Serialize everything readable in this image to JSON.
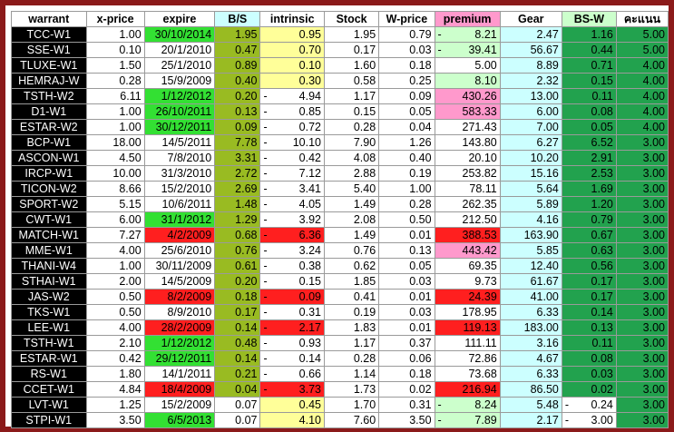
{
  "headers": [
    "warrant",
    "x-price",
    "expire",
    "B/S",
    "intrinsic",
    "Stock",
    "W-price",
    "premium",
    "Gear",
    "BS-W",
    "คะแนน"
  ],
  "colors": {
    "green": "#33e033",
    "olive": "#99bb22",
    "yellow": "#ffff99",
    "red": "#ff1f1f",
    "pink": "#ff99cc",
    "light_green": "#ccffcc",
    "cyan": "#ccffff",
    "teal": "#22a24e",
    "frame": "#8b1a1a"
  },
  "rows": [
    {
      "warrant": "TCC-W1",
      "xprice": "1.00",
      "expire": "30/10/2014",
      "bs": "1.95",
      "intrinsic": "0.95",
      "stock": "1.95",
      "wprice": "0.79",
      "premium": "8.21",
      "gear": "2.47",
      "bsw": "1.16",
      "score": "5.00"
    },
    {
      "warrant": "SSE-W1",
      "xprice": "0.10",
      "expire": "20/1/2010",
      "bs": "0.47",
      "intrinsic": "0.70",
      "stock": "0.17",
      "wprice": "0.03",
      "premium": "39.41",
      "gear": "56.67",
      "bsw": "0.44",
      "score": "5.00"
    },
    {
      "warrant": "TLUXE-W1",
      "xprice": "1.50",
      "expire": "25/1/2010",
      "bs": "0.89",
      "intrinsic": "0.10",
      "stock": "1.60",
      "wprice": "0.18",
      "premium": "5.00",
      "gear": "8.89",
      "bsw": "0.71",
      "score": "4.00"
    },
    {
      "warrant": "HEMRAJ-W",
      "xprice": "0.28",
      "expire": "15/9/2009",
      "bs": "0.40",
      "intrinsic": "0.30",
      "stock": "0.58",
      "wprice": "0.25",
      "premium": "8.10",
      "gear": "2.32",
      "bsw": "0.15",
      "score": "4.00"
    },
    {
      "warrant": "TSTH-W2",
      "xprice": "6.11",
      "expire": "1/12/2012",
      "bs": "0.20",
      "intrinsic": "4.94",
      "stock": "1.17",
      "wprice": "0.09",
      "premium": "430.26",
      "gear": "13.00",
      "bsw": "0.11",
      "score": "4.00"
    },
    {
      "warrant": "D1-W1",
      "xprice": "1.00",
      "expire": "26/10/2011",
      "bs": "0.13",
      "intrinsic": "0.85",
      "stock": "0.15",
      "wprice": "0.05",
      "premium": "583.33",
      "gear": "6.00",
      "bsw": "0.08",
      "score": "4.00"
    },
    {
      "warrant": "ESTAR-W2",
      "xprice": "1.00",
      "expire": "30/12/2011",
      "bs": "0.09",
      "intrinsic": "0.72",
      "stock": "0.28",
      "wprice": "0.04",
      "premium": "271.43",
      "gear": "7.00",
      "bsw": "0.05",
      "score": "4.00"
    },
    {
      "warrant": "BCP-W1",
      "xprice": "18.00",
      "expire": "14/5/2011",
      "bs": "7.78",
      "intrinsic": "10.10",
      "stock": "7.90",
      "wprice": "1.26",
      "premium": "143.80",
      "gear": "6.27",
      "bsw": "6.52",
      "score": "3.00"
    },
    {
      "warrant": "ASCON-W1",
      "xprice": "4.50",
      "expire": "7/8/2010",
      "bs": "3.31",
      "intrinsic": "0.42",
      "stock": "4.08",
      "wprice": "0.40",
      "premium": "20.10",
      "gear": "10.20",
      "bsw": "2.91",
      "score": "3.00"
    },
    {
      "warrant": "IRCP-W1",
      "xprice": "10.00",
      "expire": "31/3/2010",
      "bs": "2.72",
      "intrinsic": "7.12",
      "stock": "2.88",
      "wprice": "0.19",
      "premium": "253.82",
      "gear": "15.16",
      "bsw": "2.53",
      "score": "3.00"
    },
    {
      "warrant": "TICON-W2",
      "xprice": "8.66",
      "expire": "15/2/2010",
      "bs": "2.69",
      "intrinsic": "3.41",
      "stock": "5.40",
      "wprice": "1.00",
      "premium": "78.11",
      "gear": "5.64",
      "bsw": "1.69",
      "score": "3.00"
    },
    {
      "warrant": "SPORT-W2",
      "xprice": "5.15",
      "expire": "10/6/2011",
      "bs": "1.48",
      "intrinsic": "4.05",
      "stock": "1.49",
      "wprice": "0.28",
      "premium": "262.35",
      "gear": "5.89",
      "bsw": "1.20",
      "score": "3.00"
    },
    {
      "warrant": "CWT-W1",
      "xprice": "6.00",
      "expire": "31/1/2012",
      "bs": "1.29",
      "intrinsic": "3.92",
      "stock": "2.08",
      "wprice": "0.50",
      "premium": "212.50",
      "gear": "4.16",
      "bsw": "0.79",
      "score": "3.00"
    },
    {
      "warrant": "MATCH-W1",
      "xprice": "7.27",
      "expire": "4/2/2009",
      "bs": "0.68",
      "intrinsic": "6.36",
      "stock": "1.49",
      "wprice": "0.01",
      "premium": "388.53",
      "gear": "163.90",
      "bsw": "0.67",
      "score": "3.00"
    },
    {
      "warrant": "MME-W1",
      "xprice": "4.00",
      "expire": "25/6/2010",
      "bs": "0.76",
      "intrinsic": "3.24",
      "stock": "0.76",
      "wprice": "0.13",
      "premium": "443.42",
      "gear": "5.85",
      "bsw": "0.63",
      "score": "3.00"
    },
    {
      "warrant": "THANI-W4",
      "xprice": "1.00",
      "expire": "30/11/2009",
      "bs": "0.61",
      "intrinsic": "0.38",
      "stock": "0.62",
      "wprice": "0.05",
      "premium": "69.35",
      "gear": "12.40",
      "bsw": "0.56",
      "score": "3.00"
    },
    {
      "warrant": "STHAI-W1",
      "xprice": "2.00",
      "expire": "14/5/2009",
      "bs": "0.20",
      "intrinsic": "0.15",
      "stock": "1.85",
      "wprice": "0.03",
      "premium": "9.73",
      "gear": "61.67",
      "bsw": "0.17",
      "score": "3.00"
    },
    {
      "warrant": "JAS-W2",
      "xprice": "0.50",
      "expire": "8/2/2009",
      "bs": "0.18",
      "intrinsic": "0.09",
      "stock": "0.41",
      "wprice": "0.01",
      "premium": "24.39",
      "gear": "41.00",
      "bsw": "0.17",
      "score": "3.00"
    },
    {
      "warrant": "TKS-W1",
      "xprice": "0.50",
      "expire": "8/9/2010",
      "bs": "0.17",
      "intrinsic": "0.31",
      "stock": "0.19",
      "wprice": "0.03",
      "premium": "178.95",
      "gear": "6.33",
      "bsw": "0.14",
      "score": "3.00"
    },
    {
      "warrant": "LEE-W1",
      "xprice": "4.00",
      "expire": "28/2/2009",
      "bs": "0.14",
      "intrinsic": "2.17",
      "stock": "1.83",
      "wprice": "0.01",
      "premium": "119.13",
      "gear": "183.00",
      "bsw": "0.13",
      "score": "3.00"
    },
    {
      "warrant": "TSTH-W1",
      "xprice": "2.10",
      "expire": "1/12/2012",
      "bs": "0.48",
      "intrinsic": "0.93",
      "stock": "1.17",
      "wprice": "0.37",
      "premium": "111.11",
      "gear": "3.16",
      "bsw": "0.11",
      "score": "3.00"
    },
    {
      "warrant": "ESTAR-W1",
      "xprice": "0.42",
      "expire": "29/12/2011",
      "bs": "0.14",
      "intrinsic": "0.14",
      "stock": "0.28",
      "wprice": "0.06",
      "premium": "72.86",
      "gear": "4.67",
      "bsw": "0.08",
      "score": "3.00"
    },
    {
      "warrant": "RS-W1",
      "xprice": "1.80",
      "expire": "14/1/2011",
      "bs": "0.21",
      "intrinsic": "0.66",
      "stock": "1.14",
      "wprice": "0.18",
      "premium": "73.68",
      "gear": "6.33",
      "bsw": "0.03",
      "score": "3.00"
    },
    {
      "warrant": "CCET-W1",
      "xprice": "4.84",
      "expire": "18/4/2009",
      "bs": "0.04",
      "intrinsic": "3.73",
      "stock": "1.73",
      "wprice": "0.02",
      "premium": "216.94",
      "gear": "86.50",
      "bsw": "0.02",
      "score": "3.00"
    },
    {
      "warrant": "LVT-W1",
      "xprice": "1.25",
      "expire": "15/2/2009",
      "bs": "0.07",
      "intrinsic": "0.45",
      "stock": "1.70",
      "wprice": "0.31",
      "premium": "8.24",
      "gear": "5.48",
      "bsw": "0.24",
      "score": "3.00"
    },
    {
      "warrant": "STPI-W1",
      "xprice": "3.50",
      "expire": "6/5/2013",
      "bs": "0.07",
      "intrinsic": "4.10",
      "stock": "7.60",
      "wprice": "3.50",
      "premium": "7.89",
      "gear": "2.17",
      "bsw": "3.00",
      "score": "3.00"
    }
  ],
  "neg_marks": {
    "intrinsic": [
      false,
      false,
      false,
      false,
      true,
      true,
      true,
      true,
      true,
      true,
      true,
      true,
      true,
      true,
      true,
      true,
      true,
      true,
      true,
      true,
      true,
      true,
      true,
      true,
      false,
      false
    ],
    "premium": [
      true,
      true,
      false,
      false,
      false,
      false,
      false,
      false,
      false,
      false,
      false,
      false,
      false,
      false,
      false,
      false,
      false,
      false,
      false,
      false,
      false,
      false,
      false,
      false,
      true,
      true
    ],
    "bsw": [
      false,
      false,
      false,
      false,
      false,
      false,
      false,
      false,
      false,
      false,
      false,
      false,
      false,
      false,
      false,
      false,
      false,
      false,
      false,
      false,
      false,
      false,
      false,
      false,
      true,
      true
    ]
  }
}
